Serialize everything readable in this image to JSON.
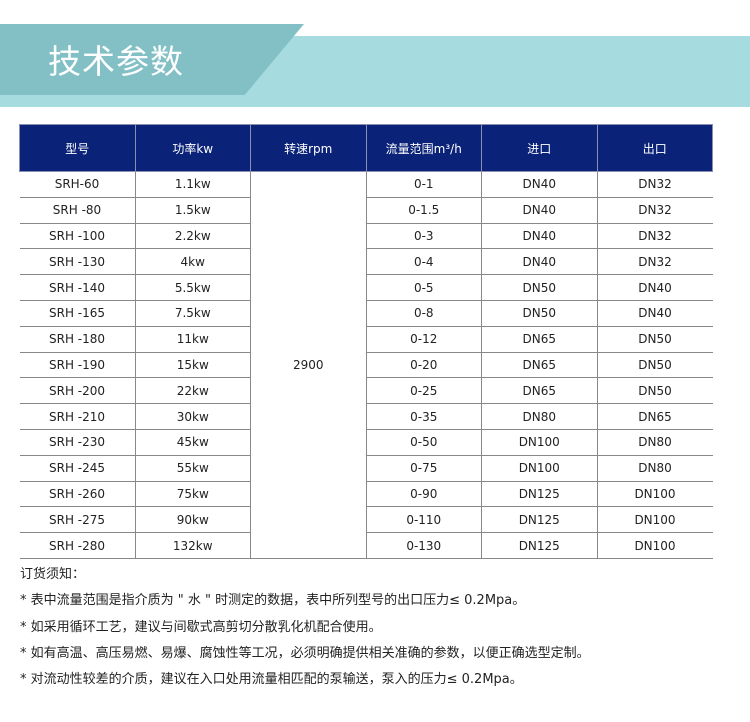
{
  "title": "技术参数",
  "table": {
    "headers": [
      "型号",
      "功率kw",
      "转速rpm",
      "流量范围m³/h",
      "进口",
      "出口"
    ],
    "speed": "2900",
    "rows": [
      [
        "SRH-60",
        "1.1kw",
        "0-1",
        "DN40",
        "DN32"
      ],
      [
        "SRH -80",
        "1.5kw",
        "0-1.5",
        "DN40",
        "DN32"
      ],
      [
        "SRH -100",
        "2.2kw",
        "0-3",
        "DN40",
        "DN32"
      ],
      [
        "SRH -130",
        "4kw",
        "0-4",
        "DN40",
        "DN32"
      ],
      [
        "SRH -140",
        "5.5kw",
        "0-5",
        "DN50",
        "DN40"
      ],
      [
        "SRH -165",
        "7.5kw",
        "0-8",
        "DN50",
        "DN40"
      ],
      [
        "SRH -180",
        "11kw",
        "0-12",
        "DN65",
        "DN50"
      ],
      [
        "SRH -190",
        "15kw",
        "0-20",
        "DN65",
        "DN50"
      ],
      [
        "SRH -200",
        "22kw",
        "0-25",
        "DN65",
        "DN50"
      ],
      [
        "SRH -210",
        "30kw",
        "0-35",
        "DN80",
        "DN65"
      ],
      [
        "SRH -230",
        "45kw",
        "0-50",
        "DN100",
        "DN80"
      ],
      [
        "SRH -245",
        "55kw",
        "0-75",
        "DN100",
        "DN80"
      ],
      [
        "SRH -260",
        "75kw",
        "0-90",
        "DN125",
        "DN100"
      ],
      [
        "SRH -275",
        "90kw",
        "0-110",
        "DN125",
        "DN100"
      ],
      [
        "SRH -280",
        "132kw",
        "0-130",
        "DN125",
        "DN100"
      ]
    ]
  },
  "notes": {
    "heading": "订货须知：",
    "items": [
      "* 表中流量范围是指介质为 \" 水 \" 时测定的数据，表中所列型号的出口压力≤ 0.2Mpa。",
      "* 如采用循环工艺，建议与间歇式高剪切分散乳化机配合使用。",
      "* 如有高温、高压易燃、易爆、腐蚀性等工况，必须明确提供相关准确的参数，以便正确选型定制。",
      "* 对流动性较差的介质，建议在入口处用流量相匹配的泵输送，泵入的压力≤ 0.2Mpa。"
    ]
  },
  "colors": {
    "header_bg": "#0a2277",
    "banner_light": "#a6dcdf",
    "banner_dark": "#82c0c6"
  }
}
